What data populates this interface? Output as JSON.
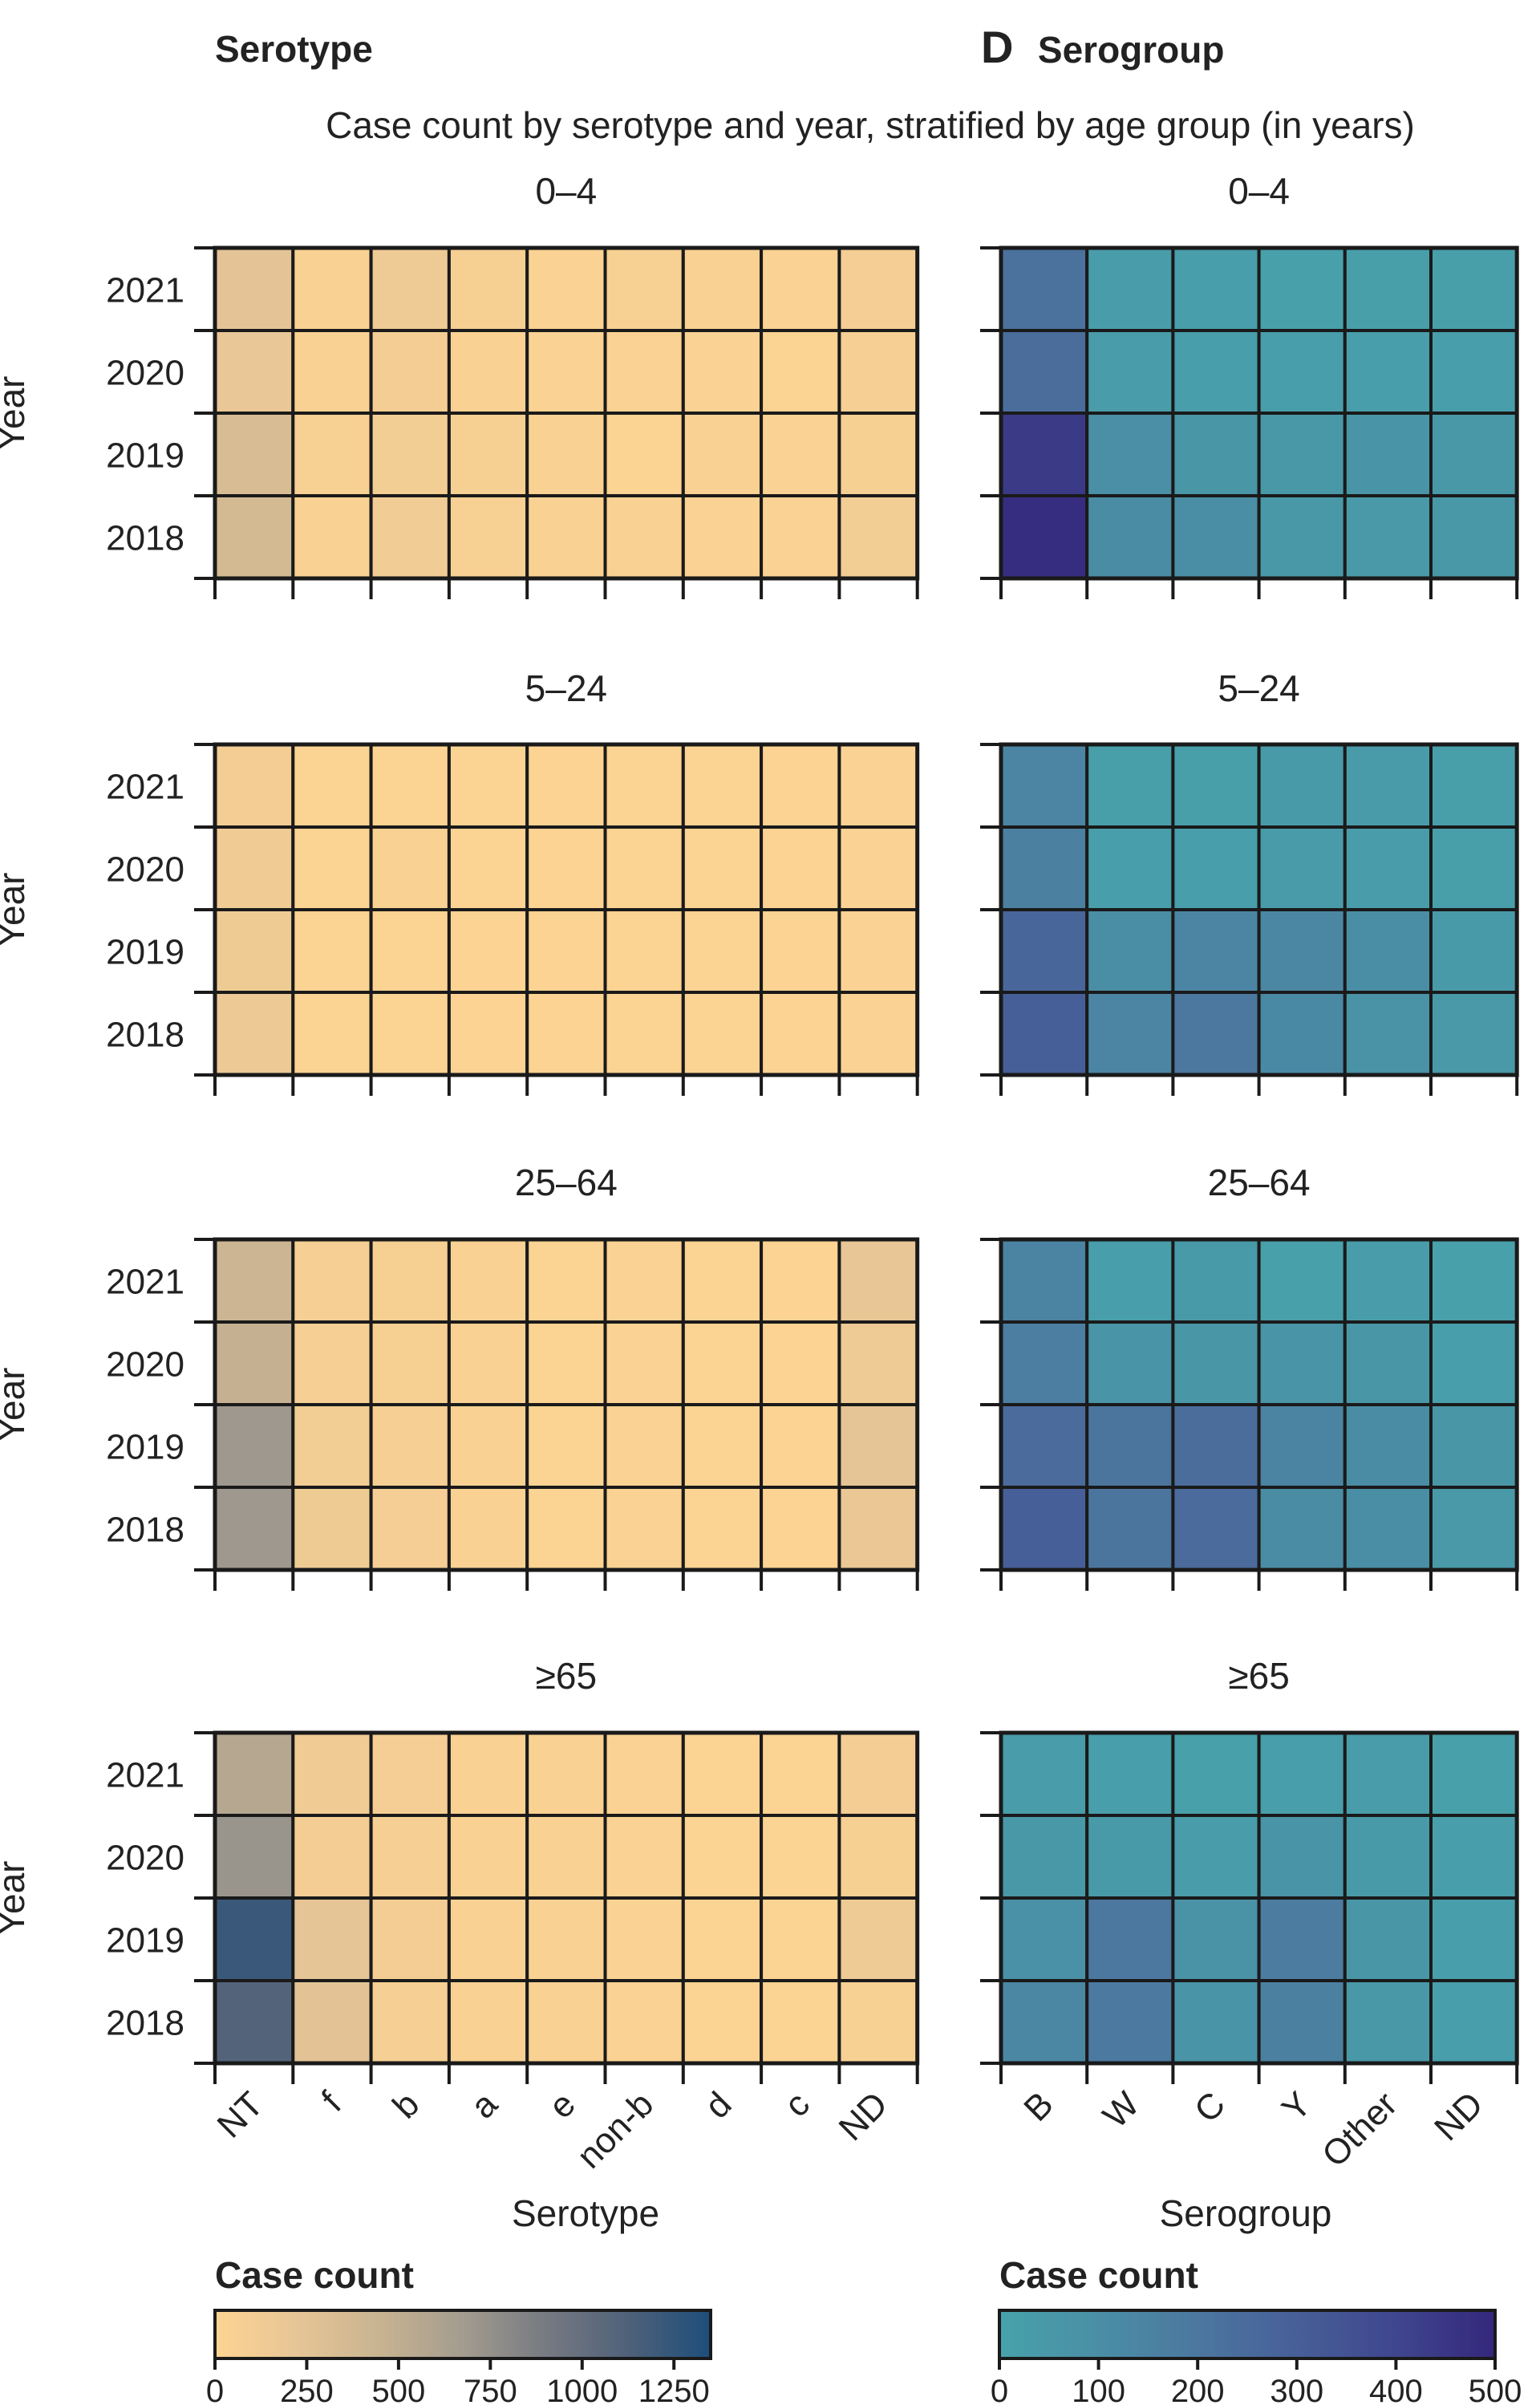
{
  "header": {
    "left_title": "Serotype",
    "right_letter": "D",
    "right_title": "Serogroup",
    "subtitle": "Case count by serotype and year, stratified by age group (in years)"
  },
  "chart_data": [
    {
      "type": "heatmap",
      "panel": "Serotype",
      "title": "Case count by serotype and year, stratified by age group (in years)",
      "xlabel": "Serotype",
      "ylabel": "Year",
      "x_categories": [
        "NT",
        "f",
        "b",
        "a",
        "e",
        "non-b",
        "d",
        "c",
        "ND"
      ],
      "y_categories": [
        "2021",
        "2020",
        "2019",
        "2018"
      ],
      "facets": [
        {
          "name": "0–4",
          "values": [
            [
              240,
              40,
              150,
              70,
              30,
              60,
              40,
              30,
              90
            ],
            [
              200,
              40,
              100,
              50,
              30,
              30,
              30,
              20,
              80
            ],
            [
              330,
              60,
              110,
              70,
              40,
              20,
              40,
              30,
              70
            ],
            [
              360,
              50,
              120,
              60,
              40,
              40,
              30,
              30,
              110
            ]
          ]
        },
        {
          "name": "5–24",
          "values": [
            [
              100,
              20,
              20,
              20,
              10,
              20,
              20,
              10,
              30
            ],
            [
              130,
              20,
              40,
              20,
              10,
              20,
              20,
              10,
              30
            ],
            [
              140,
              20,
              20,
              10,
              10,
              20,
              20,
              10,
              30
            ],
            [
              160,
              20,
              20,
              10,
              10,
              20,
              20,
              10,
              30
            ]
          ]
        },
        {
          "name": "25–64",
          "values": [
            [
              420,
              80,
              70,
              40,
              20,
              30,
              20,
              10,
              210
            ],
            [
              470,
              80,
              70,
              40,
              20,
              30,
              20,
              10,
              150
            ],
            [
              700,
              110,
              80,
              40,
              20,
              30,
              20,
              10,
              230
            ],
            [
              700,
              140,
              90,
              40,
              20,
              30,
              20,
              10,
              190
            ]
          ]
        },
        {
          "name": "≥65",
          "values": [
            [
              560,
              130,
              90,
              50,
              40,
              30,
              20,
              20,
              100
            ],
            [
              720,
              100,
              80,
              50,
              40,
              30,
              20,
              20,
              70
            ],
            [
              1220,
              230,
              100,
              40,
              40,
              30,
              20,
              20,
              150
            ],
            [
              1100,
              250,
              80,
              50,
              50,
              30,
              20,
              20,
              60
            ]
          ]
        }
      ],
      "colorbar": {
        "label": "Case count",
        "range": [
          0,
          1350
        ],
        "ticks": [
          0,
          250,
          500,
          750,
          1000,
          1250
        ],
        "colors": [
          "#fdd492",
          "#e6c596",
          "#c8b391",
          "#a39c8f",
          "#777a82",
          "#4f6179",
          "#1d4e7b"
        ]
      }
    },
    {
      "type": "heatmap",
      "panel": "Serogroup",
      "title": "Case count by serotype and year, stratified by age group (in years)",
      "xlabel": "Serogroup",
      "ylabel": "Year",
      "x_categories": [
        "B",
        "W",
        "C",
        "Y",
        "Other",
        "ND"
      ],
      "y_categories": [
        "2021",
        "2020",
        "2019",
        "2018"
      ],
      "facets": [
        {
          "name": "0–4",
          "values": [
            [
              225,
              25,
              20,
              10,
              15,
              15
            ],
            [
              240,
              30,
              20,
              20,
              20,
              20
            ],
            [
              440,
              95,
              60,
              50,
              70,
              50
            ],
            [
              480,
              110,
              100,
              50,
              45,
              50
            ]
          ]
        },
        {
          "name": "5–24",
          "values": [
            [
              140,
              15,
              15,
              40,
              35,
              15
            ],
            [
              160,
              20,
              20,
              35,
              30,
              15
            ],
            [
              270,
              100,
              140,
              130,
              100,
              40
            ],
            [
              300,
              140,
              200,
              120,
              80,
              45
            ]
          ]
        },
        {
          "name": "25–64",
          "values": [
            [
              150,
              20,
              40,
              10,
              25,
              10
            ],
            [
              170,
              70,
              60,
              70,
              60,
              20
            ],
            [
              250,
              210,
              240,
              150,
              110,
              60
            ],
            [
              300,
              210,
              250,
              110,
              100,
              45
            ]
          ]
        },
        {
          "name": "≥65",
          "values": [
            [
              30,
              20,
              10,
              20,
              30,
              10
            ],
            [
              50,
              40,
              30,
              70,
              40,
              20
            ],
            [
              90,
              200,
              80,
              180,
              60,
              20
            ],
            [
              130,
              190,
              70,
              160,
              50,
              20
            ]
          ]
        }
      ],
      "colorbar": {
        "label": "Case count",
        "range": [
          0,
          500
        ],
        "ticks": [
          0,
          100,
          200,
          300,
          400,
          500
        ],
        "colors": [
          "#48a2ab",
          "#4a8ea5",
          "#4c779f",
          "#475f98",
          "#3f468e",
          "#35277c"
        ]
      }
    }
  ]
}
